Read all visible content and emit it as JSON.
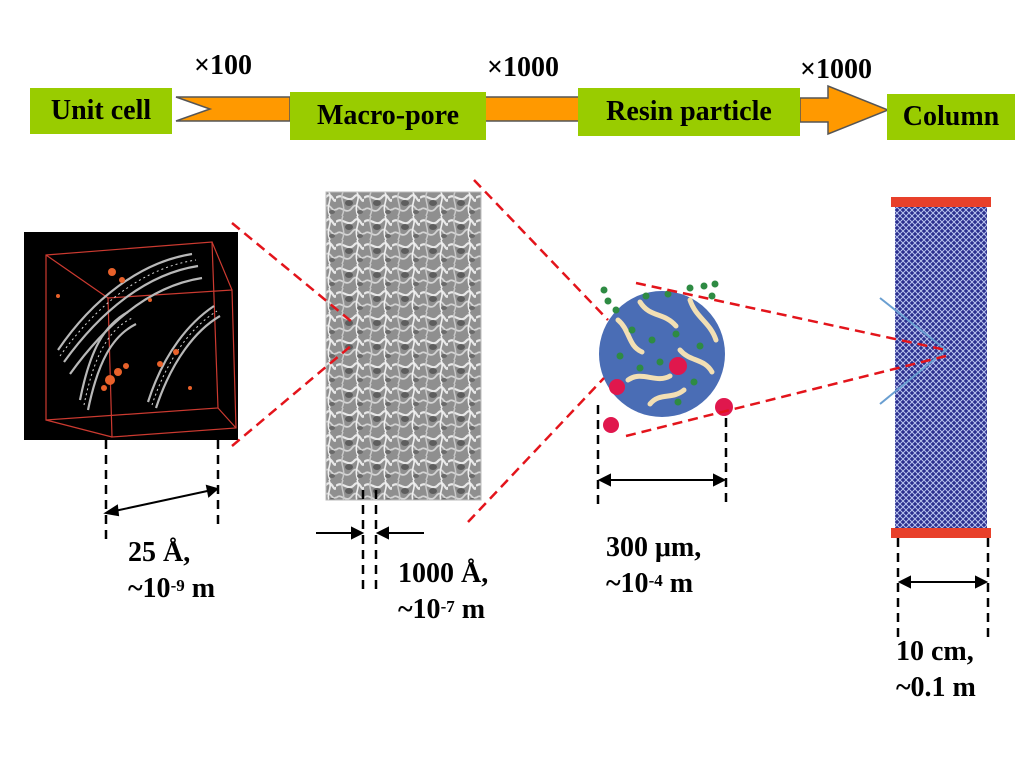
{
  "stages": [
    {
      "label": "Unit cell"
    },
    {
      "label": "Macro-pore"
    },
    {
      "label": "Resin particle"
    },
    {
      "label": "Column"
    }
  ],
  "multipliers": [
    "×100",
    "×1000",
    "×1000"
  ],
  "measurements": {
    "unit_cell": {
      "line1": "25 Å,",
      "line2_prefix": "~10",
      "line2_exp": "-9",
      "line2_suffix": " m"
    },
    "macro_pore": {
      "line1": "1000 Å,",
      "line2_prefix": "~10",
      "line2_exp": "-7",
      "line2_suffix": " m"
    },
    "resin_particle": {
      "line1": "300 μm,",
      "line2_prefix": "~10",
      "line2_exp": "-4",
      "line2_suffix": " m"
    },
    "column": {
      "line1": "10 cm,",
      "line2": "~0.1 m"
    }
  },
  "colors": {
    "stage_box": "#99cc00",
    "arrow": "#ff9900",
    "zoom_lines": "#e3141b",
    "particle": "#4a6db5",
    "column_fill": "#2b2f8e",
    "column_caps": "#e8402a"
  }
}
